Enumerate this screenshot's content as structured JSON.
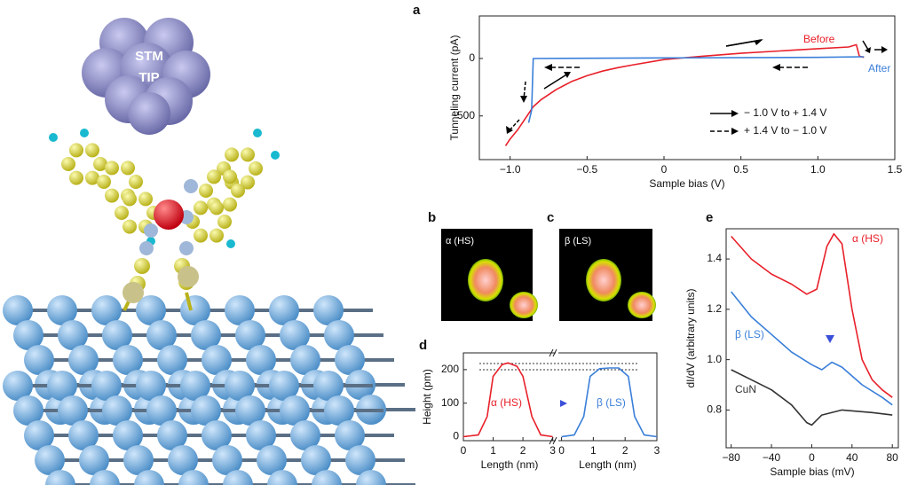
{
  "illustration": {
    "tip_label": [
      "STM",
      "TIP"
    ]
  },
  "images": [
    {
      "label": "b",
      "caption": "α (HS)"
    },
    {
      "label": "c",
      "caption": "β (LS)"
    }
  ],
  "chart_data": [
    {
      "type": "line",
      "label": "a",
      "xlabel": "Sample bias (V)",
      "ylabel": "Tunneling current (pA)",
      "xlim": [
        -1.2,
        1.5
      ],
      "ylim": [
        -880,
        370
      ],
      "xticks": [
        {
          "value": -1.0,
          "label": "−1.0"
        },
        {
          "value": -0.5,
          "label": "−0.5"
        },
        0,
        0.5,
        {
          "value": 1.0,
          "label": "1.0"
        },
        1.5
      ],
      "yticks": [
        {
          "value": -500,
          "label": "−500"
        },
        0
      ],
      "legend": [
        {
          "label": "− 1.0 V to + 1.4 V",
          "style": "solid"
        },
        {
          "label": "+ 1.4 V to − 1.0 V",
          "style": "dashed"
        }
      ],
      "series": [
        {
          "name": "Before",
          "color": "#e8202a",
          "x": [
            -1.03,
            -1.0,
            -0.95,
            -0.9,
            -0.85,
            -0.8,
            -0.7,
            -0.6,
            -0.5,
            -0.4,
            -0.3,
            -0.2,
            0,
            0.25,
            0.5,
            0.75,
            1.0,
            1.2,
            1.25,
            1.27,
            1.3
          ],
          "values": [
            -760,
            -700,
            -620,
            -520,
            -420,
            -360,
            -270,
            -200,
            -150,
            -110,
            -80,
            -55,
            -10,
            20,
            45,
            65,
            85,
            100,
            120,
            20,
            10
          ]
        },
        {
          "name": "After",
          "color": "#3a7fd9",
          "x": [
            -0.88,
            -0.86,
            -0.85,
            0,
            1.0,
            1.3
          ],
          "values": [
            -560,
            -450,
            0,
            5,
            10,
            15
          ]
        }
      ]
    },
    {
      "type": "line",
      "label": "d",
      "xlabel": "Length (nm)",
      "ylabel": "Height (pm)",
      "xlim": [
        0,
        3.1
      ],
      "ylim": [
        -12,
        250
      ],
      "xticks": [
        0,
        1,
        2,
        3
      ],
      "yticks": [
        0,
        100,
        200
      ],
      "series": [
        {
          "name": "α (HS)",
          "color": "#e8202a",
          "x": [
            0,
            0.5,
            0.8,
            1,
            1.3,
            1.5,
            1.8,
            2,
            2.3,
            2.6,
            3
          ],
          "values": [
            0,
            5,
            60,
            180,
            215,
            220,
            210,
            180,
            60,
            5,
            0
          ]
        }
      ]
    },
    {
      "type": "line",
      "xlabel": "Length (nm)",
      "xlim": [
        -0.1,
        3
      ],
      "ylim": [
        -12,
        250
      ],
      "xticks": [
        0,
        1,
        2,
        3
      ],
      "series": [
        {
          "name": "β (LS)",
          "color": "#3a7fd9",
          "x": [
            0,
            0.4,
            0.7,
            0.9,
            1.2,
            1.5,
            1.8,
            2.1,
            2.3,
            2.6,
            3
          ],
          "values": [
            0,
            5,
            60,
            180,
            203,
            205,
            205,
            180,
            60,
            5,
            0
          ]
        }
      ]
    },
    {
      "type": "line",
      "label": "e",
      "xlabel": "Sample bias (mV)",
      "ylabel": "dI/dV (arbitrary units)",
      "xlim": [
        -85,
        86
      ],
      "ylim": [
        0.65,
        1.52
      ],
      "xticks": [
        {
          "value": -80,
          "label": "−80"
        },
        {
          "value": -40,
          "label": "−40"
        },
        0,
        40,
        80
      ],
      "yticks": [
        {
          "value": 0.8,
          "label": "0.8"
        },
        {
          "value": 1.0,
          "label": "1.0"
        },
        {
          "value": 1.2,
          "label": "1.2"
        },
        {
          "value": 1.4,
          "label": "1.4"
        }
      ],
      "series": [
        {
          "name": "α (HS)",
          "color": "#e8202a",
          "x": [
            -80,
            -60,
            -40,
            -20,
            -5,
            5,
            15,
            22,
            30,
            40,
            50,
            60,
            70,
            80
          ],
          "values": [
            1.49,
            1.4,
            1.34,
            1.3,
            1.26,
            1.28,
            1.45,
            1.5,
            1.46,
            1.2,
            1.0,
            0.92,
            0.88,
            0.85
          ]
        },
        {
          "name": "β (LS)",
          "color": "#3a7fd9",
          "x": [
            -80,
            -60,
            -40,
            -20,
            0,
            10,
            20,
            30,
            50,
            70,
            80
          ],
          "values": [
            1.27,
            1.17,
            1.1,
            1.03,
            0.98,
            0.96,
            0.99,
            0.97,
            0.9,
            0.85,
            0.82
          ]
        },
        {
          "name": "CuN",
          "color": "#333333",
          "x": [
            -80,
            -60,
            -40,
            -20,
            -5,
            0,
            10,
            30,
            60,
            80
          ],
          "values": [
            0.96,
            0.92,
            0.88,
            0.82,
            0.75,
            0.74,
            0.78,
            0.8,
            0.79,
            0.78
          ]
        }
      ]
    }
  ]
}
